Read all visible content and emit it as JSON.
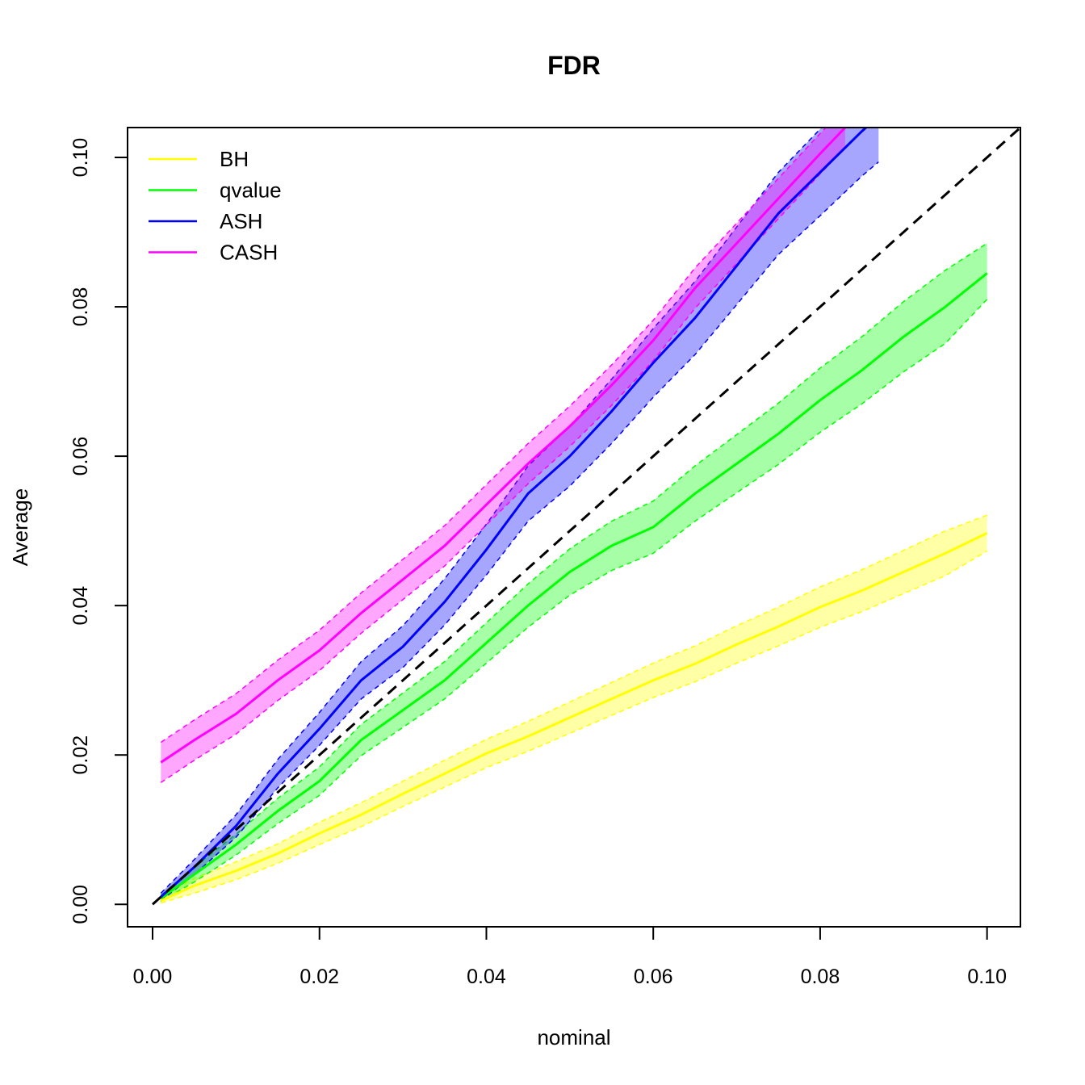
{
  "chart_data": {
    "type": "line",
    "title": "FDR",
    "xlabel": "nominal",
    "ylabel": "Average",
    "xlim": [
      -0.003,
      0.104
    ],
    "ylim": [
      -0.003,
      0.104
    ],
    "xticks": [
      "0.00",
      "0.02",
      "0.04",
      "0.06",
      "0.08",
      "0.10"
    ],
    "yticks": [
      "0.00",
      "0.02",
      "0.04",
      "0.06",
      "0.08",
      "0.10"
    ],
    "grid": false,
    "legend_position": "top-left",
    "reference_line": {
      "from": [
        0,
        0
      ],
      "to": [
        0.104,
        0.104
      ],
      "style": "dashed",
      "color": "#000000"
    },
    "series": [
      {
        "name": "BH",
        "color": "#ffff00",
        "x": [
          0.001,
          0.005,
          0.01,
          0.015,
          0.02,
          0.025,
          0.03,
          0.035,
          0.04,
          0.045,
          0.05,
          0.055,
          0.06,
          0.065,
          0.07,
          0.075,
          0.08,
          0.085,
          0.09,
          0.095,
          0.1
        ],
        "y": [
          0.0005,
          0.0025,
          0.0045,
          0.0068,
          0.0095,
          0.012,
          0.0148,
          0.0175,
          0.0202,
          0.0225,
          0.025,
          0.0275,
          0.03,
          0.0322,
          0.0348,
          0.0372,
          0.0398,
          0.042,
          0.0445,
          0.047,
          0.0497
        ],
        "lower": [
          0.0002,
          0.0015,
          0.0033,
          0.0055,
          0.008,
          0.0104,
          0.0131,
          0.0157,
          0.0183,
          0.0205,
          0.0229,
          0.0253,
          0.0277,
          0.0298,
          0.0323,
          0.0346,
          0.0371,
          0.0392,
          0.0416,
          0.044,
          0.0473
        ],
        "upper": [
          0.001,
          0.0035,
          0.0057,
          0.0081,
          0.011,
          0.0136,
          0.0165,
          0.0193,
          0.0221,
          0.0245,
          0.0271,
          0.0297,
          0.0323,
          0.0346,
          0.0373,
          0.0398,
          0.0425,
          0.0448,
          0.0474,
          0.05,
          0.0521
        ]
      },
      {
        "name": "qvalue",
        "color": "#00ff00",
        "x": [
          0.001,
          0.005,
          0.01,
          0.015,
          0.02,
          0.025,
          0.03,
          0.035,
          0.04,
          0.045,
          0.05,
          0.055,
          0.06,
          0.065,
          0.07,
          0.075,
          0.08,
          0.085,
          0.09,
          0.095,
          0.1
        ],
        "y": [
          0.0008,
          0.004,
          0.008,
          0.0125,
          0.0165,
          0.022,
          0.026,
          0.03,
          0.035,
          0.04,
          0.0445,
          0.048,
          0.0505,
          0.055,
          0.059,
          0.063,
          0.0675,
          0.0715,
          0.076,
          0.08,
          0.0845
        ],
        "lower": [
          0.0004,
          0.003,
          0.0066,
          0.0108,
          0.0146,
          0.0199,
          0.0237,
          0.0275,
          0.0323,
          0.0371,
          0.0414,
          0.0447,
          0.047,
          0.0513,
          0.0551,
          0.0589,
          0.0632,
          0.067,
          0.0713,
          0.0751,
          0.081
        ],
        "upper": [
          0.0012,
          0.005,
          0.0094,
          0.0142,
          0.0184,
          0.0241,
          0.0283,
          0.0325,
          0.0377,
          0.0429,
          0.0476,
          0.0513,
          0.054,
          0.0587,
          0.0629,
          0.0671,
          0.0718,
          0.076,
          0.0807,
          0.0849,
          0.0885
        ]
      },
      {
        "name": "ASH",
        "color": "#0000ff",
        "x": [
          0.001,
          0.005,
          0.01,
          0.015,
          0.02,
          0.025,
          0.03,
          0.035,
          0.04,
          0.045,
          0.05,
          0.055,
          0.06,
          0.065,
          0.07,
          0.075,
          0.08,
          0.085,
          0.087
        ],
        "y": [
          0.001,
          0.005,
          0.0105,
          0.0175,
          0.0235,
          0.03,
          0.0345,
          0.0405,
          0.0475,
          0.055,
          0.06,
          0.066,
          0.0725,
          0.0785,
          0.0855,
          0.0925,
          0.098,
          0.1035,
          0.1055
        ],
        "lower": [
          0.0005,
          0.004,
          0.009,
          0.0156,
          0.0213,
          0.0275,
          0.0317,
          0.0374,
          0.0441,
          0.0513,
          0.056,
          0.0617,
          0.0679,
          0.0736,
          0.0803,
          0.087,
          0.0922,
          0.0975,
          0.0994
        ],
        "upper": [
          0.0015,
          0.006,
          0.012,
          0.0194,
          0.0257,
          0.0325,
          0.0373,
          0.0436,
          0.0509,
          0.0587,
          0.064,
          0.0703,
          0.0771,
          0.0834,
          0.0907,
          0.098,
          0.1038,
          0.1095,
          0.1116
        ]
      },
      {
        "name": "CASH",
        "color": "#ff00ff",
        "x": [
          0.001,
          0.005,
          0.01,
          0.015,
          0.02,
          0.025,
          0.03,
          0.035,
          0.04,
          0.045,
          0.05,
          0.055,
          0.06,
          0.065,
          0.07,
          0.075,
          0.08,
          0.083
        ],
        "y": [
          0.019,
          0.022,
          0.0255,
          0.03,
          0.034,
          0.039,
          0.0435,
          0.048,
          0.0535,
          0.059,
          0.064,
          0.0695,
          0.0755,
          0.0825,
          0.0885,
          0.0945,
          0.1005,
          0.104
        ],
        "lower": [
          0.0163,
          0.0193,
          0.0228,
          0.0273,
          0.0313,
          0.0363,
          0.0408,
          0.0453,
          0.0508,
          0.0563,
          0.0613,
          0.0668,
          0.0728,
          0.0798,
          0.0858,
          0.0918,
          0.0978,
          0.1013
        ],
        "upper": [
          0.0217,
          0.0247,
          0.0282,
          0.0327,
          0.0367,
          0.0417,
          0.0462,
          0.0507,
          0.0562,
          0.0617,
          0.0667,
          0.0722,
          0.0782,
          0.0852,
          0.0912,
          0.0972,
          0.1032,
          0.1067
        ]
      }
    ]
  }
}
